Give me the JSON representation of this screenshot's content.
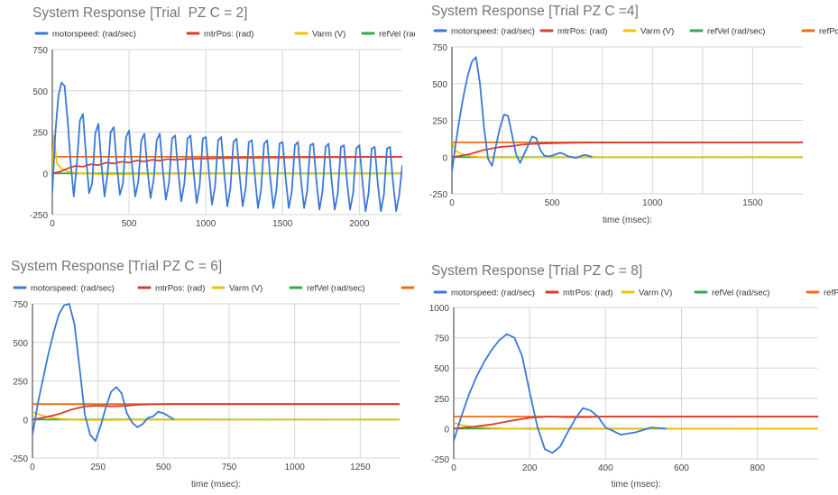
{
  "legend_labels": [
    "motorspeed: (rad/sec)",
    "mtrPos: (rad)",
    "Varm (V)",
    "refVel (rad/sec)",
    "refPos (rad)"
  ],
  "series_colors": [
    "#3a78d8",
    "#db3b2b",
    "#f2c200",
    "#34a853",
    "#f26b11"
  ],
  "chart_data": [
    {
      "type": "line",
      "title": "System Response [Trial  PZ C = 2]",
      "xlabel": "",
      "ylabel": "",
      "xlim": [
        0,
        2280
      ],
      "ylim": [
        -250,
        750
      ],
      "xticks": [
        0,
        500,
        1000,
        1500,
        2000
      ],
      "yticks": [
        -250,
        0,
        250,
        500,
        750
      ],
      "x_vgrid": [
        0,
        500,
        1000,
        1500,
        2000
      ],
      "legend": "top",
      "grid": true,
      "series": [
        {
          "name": "motorspeed: (rad/sec)",
          "x": [
            0,
            20,
            40,
            60,
            80,
            100,
            120,
            140,
            160,
            180,
            200,
            220,
            240,
            260,
            280,
            300,
            320,
            340,
            360,
            380,
            400,
            420,
            440,
            460,
            480,
            500,
            520,
            540,
            560,
            580,
            600,
            620,
            640,
            660,
            680,
            700,
            720,
            740,
            760,
            780,
            800,
            820,
            840,
            860,
            880,
            900,
            920,
            940,
            960,
            980,
            1000,
            1020,
            1040,
            1060,
            1080,
            1100,
            1120,
            1140,
            1160,
            1180,
            1200,
            1220,
            1240,
            1260,
            1280,
            1300,
            1320,
            1340,
            1360,
            1380,
            1400,
            1420,
            1440,
            1460,
            1480,
            1500,
            1520,
            1540,
            1560,
            1580,
            1600,
            1620,
            1640,
            1660,
            1680,
            1700,
            1720,
            1740,
            1760,
            1780,
            1800,
            1820,
            1840,
            1860,
            1880,
            1900,
            1920,
            1940,
            1960,
            1980,
            2000,
            2020,
            2040,
            2060,
            2080,
            2100,
            2120,
            2140,
            2160,
            2180,
            2200,
            2220,
            2240,
            2260,
            2280
          ],
          "values": [
            -120,
            250,
            470,
            550,
            530,
            320,
            60,
            -140,
            60,
            320,
            360,
            100,
            -120,
            -60,
            240,
            300,
            50,
            -140,
            0,
            250,
            280,
            50,
            -130,
            -60,
            220,
            260,
            40,
            -140,
            -50,
            200,
            240,
            20,
            -150,
            -40,
            200,
            240,
            20,
            -160,
            -60,
            210,
            230,
            20,
            -170,
            -60,
            210,
            230,
            10,
            -180,
            -70,
            210,
            220,
            10,
            -190,
            -80,
            200,
            220,
            0,
            -200,
            -90,
            190,
            210,
            -10,
            -200,
            -90,
            190,
            200,
            -20,
            -210,
            -100,
            180,
            200,
            -30,
            -210,
            -100,
            180,
            190,
            -30,
            -210,
            -110,
            170,
            190,
            -40,
            -210,
            -110,
            170,
            180,
            -40,
            -220,
            -110,
            160,
            180,
            -50,
            -220,
            -120,
            160,
            170,
            -50,
            -220,
            -120,
            150,
            170,
            -50,
            -230,
            -120,
            150,
            160,
            -60,
            -230,
            -130,
            150,
            160,
            -60,
            -230,
            -130,
            50
          ]
        },
        {
          "name": "mtrPos: (rad)",
          "x": [
            0,
            50,
            100,
            150,
            200,
            250,
            300,
            350,
            400,
            450,
            500,
            550,
            600,
            650,
            700,
            750,
            800,
            900,
            1000,
            1100,
            1200,
            1300,
            1400,
            1500,
            1600,
            1700,
            1800,
            1900,
            2000,
            2100,
            2200,
            2280
          ],
          "values": [
            0,
            10,
            30,
            45,
            40,
            55,
            50,
            65,
            60,
            70,
            65,
            78,
            72,
            82,
            76,
            86,
            82,
            88,
            90,
            92,
            94,
            94,
            96,
            96,
            97,
            97,
            98,
            98,
            99,
            99,
            99,
            100
          ]
        },
        {
          "name": "Varm (V)",
          "x": [
            0,
            10,
            30,
            60,
            100,
            150,
            200,
            300,
            400,
            600,
            1000,
            1500,
            2000,
            2280
          ],
          "values": [
            0,
            230,
            60,
            30,
            10,
            3,
            0,
            -5,
            -5,
            -3,
            -2,
            -2,
            -2,
            -2
          ]
        },
        {
          "name": "refVel (rad/sec)",
          "x": [
            0,
            2280
          ],
          "values": [
            0,
            0
          ]
        },
        {
          "name": "refPos (rad)",
          "x": [
            0,
            2280
          ],
          "values": [
            100,
            100
          ]
        }
      ]
    },
    {
      "type": "line",
      "title": "System Response [Trial PZ C =4]",
      "xlabel": "time (msec):",
      "ylabel": "",
      "xlim": [
        0,
        1750
      ],
      "ylim": [
        -250,
        750
      ],
      "xticks": [
        0,
        500,
        1000,
        1500
      ],
      "yticks": [
        -250,
        0,
        250,
        500,
        750
      ],
      "x_vgrid": [
        250,
        500,
        750,
        1000,
        1250,
        1500
      ],
      "legend": "top",
      "grid": true,
      "series": [
        {
          "name": "motorspeed: (rad/sec)",
          "x": [
            0,
            20,
            40,
            60,
            80,
            100,
            120,
            140,
            160,
            180,
            200,
            220,
            240,
            260,
            280,
            300,
            320,
            340,
            360,
            380,
            400,
            420,
            440,
            460,
            480,
            500,
            520,
            540,
            560,
            580,
            600,
            620,
            640,
            660,
            680,
            700
          ],
          "values": [
            -100,
            100,
            280,
            430,
            560,
            650,
            680,
            500,
            200,
            -10,
            -60,
            80,
            200,
            290,
            280,
            150,
            20,
            -40,
            20,
            80,
            140,
            130,
            50,
            10,
            5,
            10,
            20,
            30,
            20,
            5,
            0,
            -5,
            5,
            15,
            10,
            0
          ]
        },
        {
          "name": "mtrPos: (rad)",
          "x": [
            0,
            50,
            100,
            150,
            200,
            250,
            300,
            350,
            400,
            500,
            600,
            700,
            1750
          ],
          "values": [
            0,
            10,
            25,
            45,
            60,
            70,
            75,
            85,
            90,
            95,
            98,
            99,
            100
          ]
        },
        {
          "name": "Varm (V)",
          "x": [
            0,
            20,
            50,
            100,
            150,
            200,
            300,
            400,
            600,
            1750
          ],
          "values": [
            100,
            40,
            20,
            5,
            0,
            -3,
            -3,
            -2,
            -1,
            0
          ]
        },
        {
          "name": "refVel (rad/sec)",
          "x": [
            0,
            1750
          ],
          "values": [
            0,
            0
          ]
        },
        {
          "name": "refPos (rad)",
          "x": [
            0,
            1750
          ],
          "values": [
            100,
            100
          ]
        }
      ]
    },
    {
      "type": "line",
      "title": "System Response [Trial PZ C = 6]",
      "xlabel": "time (msec):",
      "ylabel": "",
      "xlim": [
        0,
        1400
      ],
      "ylim": [
        -250,
        750
      ],
      "xticks": [
        0,
        250,
        500,
        750,
        1000,
        1250
      ],
      "yticks": [
        -250,
        0,
        250,
        500,
        750
      ],
      "x_vgrid": [
        250,
        500,
        750,
        1000,
        1250
      ],
      "legend": "top",
      "grid": true,
      "series": [
        {
          "name": "motorspeed: (rad/sec)",
          "x": [
            0,
            20,
            40,
            60,
            80,
            100,
            120,
            140,
            160,
            180,
            200,
            220,
            240,
            260,
            280,
            300,
            320,
            340,
            360,
            380,
            400,
            420,
            440,
            460,
            480,
            500,
            520,
            540
          ],
          "values": [
            -100,
            100,
            260,
            420,
            560,
            680,
            740,
            750,
            620,
            330,
            30,
            -100,
            -140,
            -40,
            80,
            180,
            210,
            170,
            40,
            -20,
            -50,
            -30,
            10,
            20,
            50,
            40,
            20,
            0
          ]
        },
        {
          "name": "mtrPos: (rad)",
          "x": [
            0,
            50,
            100,
            150,
            200,
            250,
            300,
            350,
            400,
            450,
            500,
            1400
          ],
          "values": [
            0,
            15,
            35,
            65,
            85,
            90,
            85,
            88,
            95,
            98,
            100,
            100
          ]
        },
        {
          "name": "Varm (V)",
          "x": [
            0,
            20,
            50,
            100,
            150,
            200,
            300,
            400,
            1400
          ],
          "values": [
            50,
            35,
            20,
            5,
            0,
            -3,
            -3,
            -2,
            0
          ]
        },
        {
          "name": "refVel (rad/sec)",
          "x": [
            0,
            1400
          ],
          "values": [
            0,
            0
          ]
        },
        {
          "name": "refPos (rad)",
          "x": [
            0,
            1400
          ],
          "values": [
            100,
            100
          ]
        }
      ]
    },
    {
      "type": "line",
      "title": "System Response [Trial PZ C = 8]",
      "xlabel": "time (msec):",
      "ylabel": "",
      "xlim": [
        0,
        960
      ],
      "ylim": [
        -250,
        1000
      ],
      "xticks": [
        0,
        200,
        400,
        600,
        800
      ],
      "yticks": [
        -250,
        0,
        250,
        500,
        750,
        1000
      ],
      "x_vgrid": [
        200,
        400,
        600,
        800
      ],
      "legend": "top",
      "grid": true,
      "series": [
        {
          "name": "motorspeed: (rad/sec)",
          "x": [
            0,
            20,
            40,
            60,
            80,
            100,
            120,
            140,
            160,
            180,
            200,
            220,
            240,
            260,
            280,
            300,
            320,
            340,
            360,
            380,
            400,
            440,
            480,
            520,
            560
          ],
          "values": [
            -100,
            100,
            280,
            430,
            550,
            650,
            730,
            780,
            750,
            600,
            300,
            20,
            -170,
            -200,
            -150,
            -30,
            80,
            170,
            150,
            100,
            10,
            -50,
            -30,
            10,
            0
          ]
        },
        {
          "name": "mtrPos: (rad)",
          "x": [
            0,
            50,
            100,
            150,
            200,
            250,
            300,
            350,
            400,
            500,
            960
          ],
          "values": [
            0,
            15,
            35,
            65,
            90,
            100,
            95,
            95,
            100,
            100,
            100
          ]
        },
        {
          "name": "Varm (V)",
          "x": [
            0,
            20,
            50,
            100,
            150,
            200,
            300,
            400,
            960
          ],
          "values": [
            50,
            30,
            15,
            5,
            0,
            -3,
            -3,
            -2,
            0
          ]
        },
        {
          "name": "refVel (rad/sec)",
          "x": [
            0,
            960
          ],
          "values": [
            0,
            0
          ]
        },
        {
          "name": "refPos (rad)",
          "x": [
            0,
            960
          ],
          "values": [
            100,
            100
          ]
        }
      ]
    }
  ]
}
